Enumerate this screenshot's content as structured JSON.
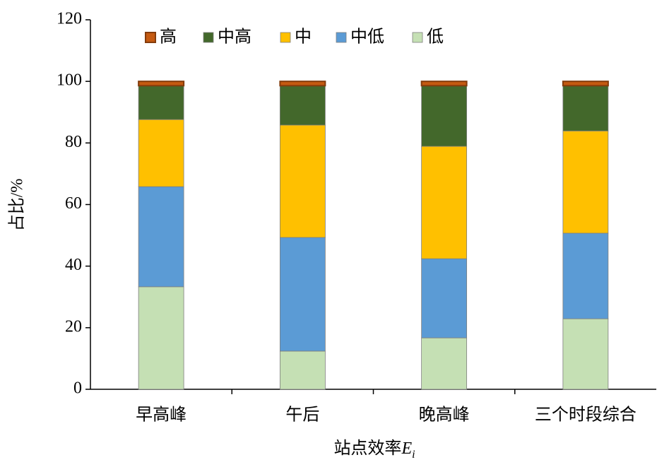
{
  "chart_data": {
    "type": "stacked-bar",
    "y_label": "占比/%",
    "x_label": {
      "text": "站点效率",
      "symbol": "E",
      "subscript": "i"
    },
    "categories": [
      "早高峰",
      "午后",
      "晚高峰",
      "三个时段综合"
    ],
    "series": [
      {
        "name": "高",
        "color": "#c55a11",
        "values": [
          1.4,
          1.4,
          1.4,
          1.4
        ]
      },
      {
        "name": "中高",
        "color": "#43682b",
        "values": [
          11.0,
          12.8,
          19.7,
          14.7
        ]
      },
      {
        "name": "中",
        "color": "#ffc000",
        "values": [
          21.8,
          36.5,
          36.5,
          33.2
        ]
      },
      {
        "name": "中低",
        "color": "#5b9bd5",
        "values": [
          32.5,
          36.9,
          25.7,
          27.8
        ]
      },
      {
        "name": "低",
        "color": "#c5e0b4",
        "values": [
          33.3,
          12.4,
          16.7,
          22.9
        ]
      }
    ],
    "ylim": [
      0,
      120
    ],
    "yticks": [
      0,
      20,
      40,
      60,
      80,
      100,
      120
    ]
  }
}
